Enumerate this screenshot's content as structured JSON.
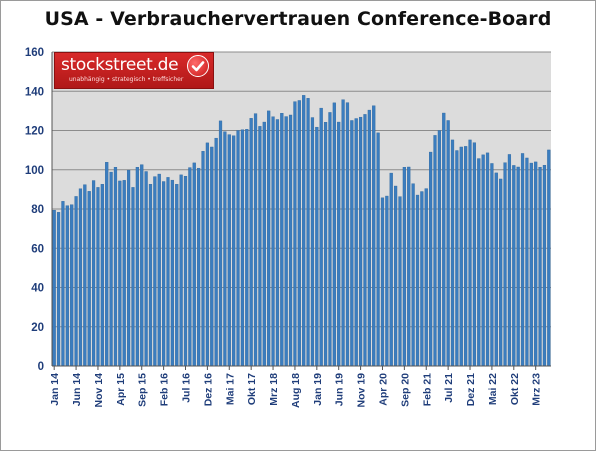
{
  "title": "USA - Verbrauchervertrauen Conference-Board",
  "logo": {
    "name": "stockstreet.de",
    "tagline": "unabhängig • strategisch • treffsicher",
    "check_icon": "check-badge-icon"
  },
  "colors": {
    "bar": "#3b7dbf",
    "bar_edge": "#2d679f",
    "plot_bg": "#dcdcdc",
    "axis_text": "#1f3d7a"
  },
  "chart_data": {
    "type": "bar",
    "title": "USA - Verbrauchervertrauen Conference-Board",
    "xlabel": "",
    "ylabel": "",
    "ylim": [
      0,
      160
    ],
    "yticks": [
      0,
      20,
      40,
      60,
      80,
      100,
      120,
      140,
      160
    ],
    "grid": true,
    "legend": "none",
    "tick_labels": [
      {
        "label": "Jan 14",
        "index": 0
      },
      {
        "label": "Jun 14",
        "index": 5
      },
      {
        "label": "Nov 14",
        "index": 10
      },
      {
        "label": "Apr 15",
        "index": 15
      },
      {
        "label": "Sep 15",
        "index": 20
      },
      {
        "label": "Feb 16",
        "index": 25
      },
      {
        "label": "Jul 16",
        "index": 30
      },
      {
        "label": "Dez 16",
        "index": 35
      },
      {
        "label": "Mai 17",
        "index": 40
      },
      {
        "label": "Okt 17",
        "index": 45
      },
      {
        "label": "Mrz 18",
        "index": 50
      },
      {
        "label": "Aug 18",
        "index": 55
      },
      {
        "label": "Jan 19",
        "index": 60
      },
      {
        "label": "Jun 19",
        "index": 65
      },
      {
        "label": "Nov 19",
        "index": 70
      },
      {
        "label": "Apr 20",
        "index": 75
      },
      {
        "label": "Sep 20",
        "index": 80
      },
      {
        "label": "Feb 21",
        "index": 85
      },
      {
        "label": "Jul 21",
        "index": 90
      },
      {
        "label": "Dez 21",
        "index": 95
      },
      {
        "label": "Mai 22",
        "index": 100
      },
      {
        "label": "Okt 22",
        "index": 105
      },
      {
        "label": "Mrz 23",
        "index": 110
      }
    ],
    "values": [
      79.4,
      78.3,
      83.9,
      81.7,
      82.2,
      86.4,
      90.3,
      92.4,
      89.0,
      94.5,
      91.0,
      92.6,
      103.8,
      98.8,
      101.3,
      94.3,
      94.6,
      99.8,
      91.0,
      101.3,
      102.6,
      99.1,
      92.6,
      96.5,
      97.8,
      94.0,
      96.1,
      94.7,
      92.6,
      97.4,
      96.7,
      101.1,
      103.5,
      100.8,
      109.4,
      113.7,
      111.6,
      116.1,
      124.9,
      119.4,
      117.9,
      117.3,
      120.0,
      120.4,
      120.6,
      126.2,
      128.6,
      122.1,
      124.3,
      130.0,
      127.0,
      125.6,
      128.8,
      127.1,
      127.9,
      134.7,
      135.3,
      137.9,
      136.4,
      126.6,
      121.7,
      131.4,
      124.2,
      129.2,
      134.1,
      124.3,
      135.7,
      134.2,
      125.1,
      126.1,
      126.8,
      128.2,
      130.4,
      132.6,
      118.8,
      85.7,
      86.6,
      98.3,
      91.7,
      86.3,
      101.3,
      101.4,
      92.9,
      87.1,
      88.9,
      90.4,
      109.0,
      117.5,
      120.0,
      128.9,
      125.1,
      115.2,
      109.8,
      111.6,
      111.9,
      115.2,
      113.8,
      105.7,
      107.6,
      108.6,
      103.2,
      98.4,
      95.3,
      103.6,
      107.8,
      102.2,
      101.4,
      108.3,
      106.0,
      103.4,
      104.0,
      101.3,
      102.3,
      110.1
    ]
  }
}
